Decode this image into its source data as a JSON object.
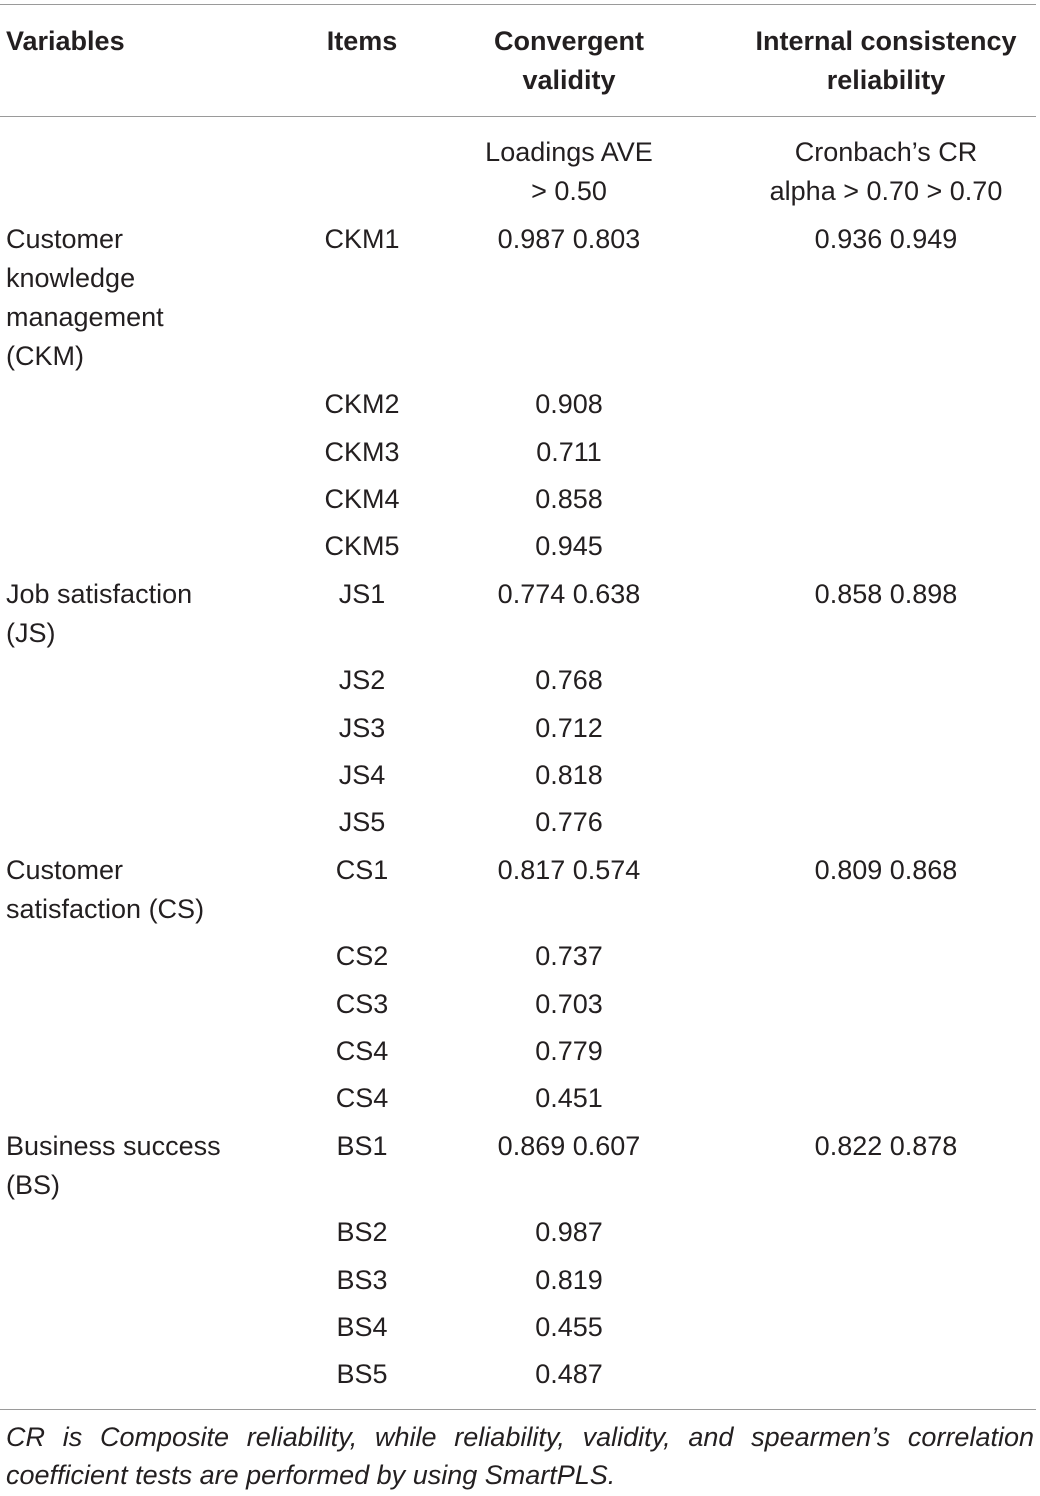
{
  "headers": {
    "variables": "Variables",
    "items": "Items",
    "convergent_line1": "Convergent",
    "convergent_line2": "validity",
    "internal_line1": "Internal consistency",
    "internal_line2": "reliability"
  },
  "subheaders": {
    "convergent_line1": "Loadings AVE",
    "convergent_line2": "> 0.50",
    "internal_line1": "Cronbach’s CR",
    "internal_line2": "alpha > 0.70 > 0.70"
  },
  "groups": [
    {
      "variable_lines": [
        "Customer",
        "knowledge",
        "management",
        "(CKM)"
      ],
      "internal": "0.936 0.949",
      "rows": [
        {
          "item": "CKM1",
          "convergent": "0.987 0.803"
        },
        {
          "item": "CKM2",
          "convergent": "0.908"
        },
        {
          "item": "CKM3",
          "convergent": "0.711"
        },
        {
          "item": "CKM4",
          "convergent": "0.858"
        },
        {
          "item": "CKM5",
          "convergent": "0.945"
        }
      ]
    },
    {
      "variable_lines": [
        "Job satisfaction",
        "(JS)"
      ],
      "internal": "0.858 0.898",
      "rows": [
        {
          "item": "JS1",
          "convergent": "0.774 0.638"
        },
        {
          "item": "JS2",
          "convergent": "0.768"
        },
        {
          "item": "JS3",
          "convergent": "0.712"
        },
        {
          "item": "JS4",
          "convergent": "0.818"
        },
        {
          "item": "JS5",
          "convergent": "0.776"
        }
      ]
    },
    {
      "variable_lines": [
        "Customer",
        "satisfaction (CS)"
      ],
      "internal": "0.809 0.868",
      "rows": [
        {
          "item": "CS1",
          "convergent": "0.817 0.574"
        },
        {
          "item": "CS2",
          "convergent": "0.737"
        },
        {
          "item": "CS3",
          "convergent": "0.703"
        },
        {
          "item": "CS4",
          "convergent": "0.779"
        },
        {
          "item": "CS4",
          "convergent": "0.451"
        }
      ]
    },
    {
      "variable_lines": [
        "Business success",
        "(BS)"
      ],
      "internal": "0.822 0.878",
      "rows": [
        {
          "item": "BS1",
          "convergent": "0.869 0.607"
        },
        {
          "item": "BS2",
          "convergent": "0.987"
        },
        {
          "item": "BS3",
          "convergent": "0.819"
        },
        {
          "item": "BS4",
          "convergent": "0.455"
        },
        {
          "item": "BS5",
          "convergent": "0.487"
        }
      ]
    }
  ],
  "footnote": "CR is Composite reliability, while reliability, validity, and spearmen’s correlation coefficient tests are performed by using SmartPLS."
}
